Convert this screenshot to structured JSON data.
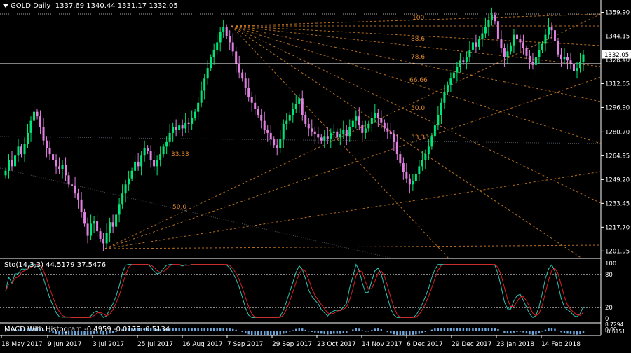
{
  "header": {
    "symbol_timeframe": "GOLD,Daily",
    "ohlc": "1337.69 1340.44 1331.17 1332.05"
  },
  "colors": {
    "background": "#000000",
    "bull_candle": "#00e676",
    "bear_candle": "#e080e0",
    "fib_lines": "#e08a2a",
    "grid": "#ffffff",
    "stoch_main": "#2ec4b6",
    "stoch_signal": "#e02020",
    "macd_hist": "#6fa8dc"
  },
  "price_axis": {
    "labels": [
      "1359.90",
      "1344.15",
      "1328.40",
      "1312.65",
      "1296.90",
      "1280.70",
      "1264.95",
      "1249.20",
      "1233.45",
      "1217.70",
      "1201.95"
    ],
    "current_price": "1332.05",
    "ylim": [
      1197,
      1368
    ]
  },
  "time_axis": {
    "labels": [
      "18 May 2017",
      "9 Jun 2017",
      "3 Jul 2017",
      "25 Jul 2017",
      "16 Aug 2017",
      "7 Sep 2017",
      "29 Sep 2017",
      "23 Oct 2017",
      "14 Nov 2017",
      "6 Dec 2017",
      "29 Dec 2017",
      "23 Jan 2018",
      "14 Feb 2018"
    ]
  },
  "fib_fan_labels": [
    "100",
    "88.6",
    "78.6",
    "66.66",
    "50.0",
    "33.33"
  ],
  "fib_left_labels": [
    "33.33",
    "50.0"
  ],
  "stochastic": {
    "header": "Sto(14,3,3) 44.5179 37.5476",
    "levels": [
      "100",
      "80",
      "20",
      "0"
    ]
  },
  "macd": {
    "header": "MACD With Histogram -0.4959 -0.0175 -0.5134",
    "levels": [
      "8.7294",
      "0.00",
      "-0.6151"
    ]
  },
  "chart_data": {
    "type": "candlestick",
    "series": [
      {
        "name": "GOLD,Daily",
        "close": [
          1255,
          1262,
          1258,
          1265,
          1271,
          1266,
          1273,
          1280,
          1288,
          1294,
          1291,
          1284,
          1275,
          1270,
          1266,
          1262,
          1258,
          1256,
          1259,
          1252,
          1246,
          1245,
          1240,
          1236,
          1228,
          1220,
          1212,
          1220,
          1222,
          1215,
          1210,
          1207,
          1214,
          1221,
          1218,
          1226,
          1233,
          1240,
          1246,
          1250,
          1255,
          1261,
          1258,
          1265,
          1270,
          1268,
          1262,
          1258,
          1262,
          1266,
          1271,
          1274,
          1280,
          1284,
          1282,
          1285,
          1283,
          1287,
          1286,
          1290,
          1294,
          1300,
          1308,
          1316,
          1323,
          1330,
          1335,
          1340,
          1347,
          1350,
          1344,
          1340,
          1334,
          1326,
          1320,
          1316,
          1310,
          1304,
          1300,
          1296,
          1292,
          1288,
          1282,
          1280,
          1276,
          1272,
          1270,
          1276,
          1286,
          1288,
          1292,
          1296,
          1299,
          1303,
          1292,
          1286,
          1283,
          1281,
          1279,
          1277,
          1275,
          1278,
          1276,
          1280,
          1281,
          1277,
          1279,
          1282,
          1278,
          1284,
          1288,
          1291,
          1285,
          1280,
          1283,
          1286,
          1290,
          1293,
          1290,
          1287,
          1283,
          1281,
          1279,
          1274,
          1266,
          1260,
          1254,
          1250,
          1246,
          1248,
          1253,
          1258,
          1262,
          1266,
          1271,
          1278,
          1285,
          1292,
          1300,
          1307,
          1312,
          1316,
          1320,
          1324,
          1328,
          1327,
          1330,
          1335,
          1340,
          1337,
          1342,
          1346,
          1350,
          1355,
          1358,
          1354,
          1342,
          1336,
          1330,
          1334,
          1338,
          1345,
          1342,
          1340,
          1336,
          1331,
          1327,
          1325,
          1330,
          1335,
          1339,
          1345,
          1350,
          1348,
          1341,
          1332,
          1329,
          1330,
          1328,
          1326,
          1321,
          1323,
          1327,
          1332
        ]
      }
    ],
    "xlabel": "",
    "ylabel": "",
    "ylim": [
      1197,
      1368
    ],
    "grid": false
  }
}
